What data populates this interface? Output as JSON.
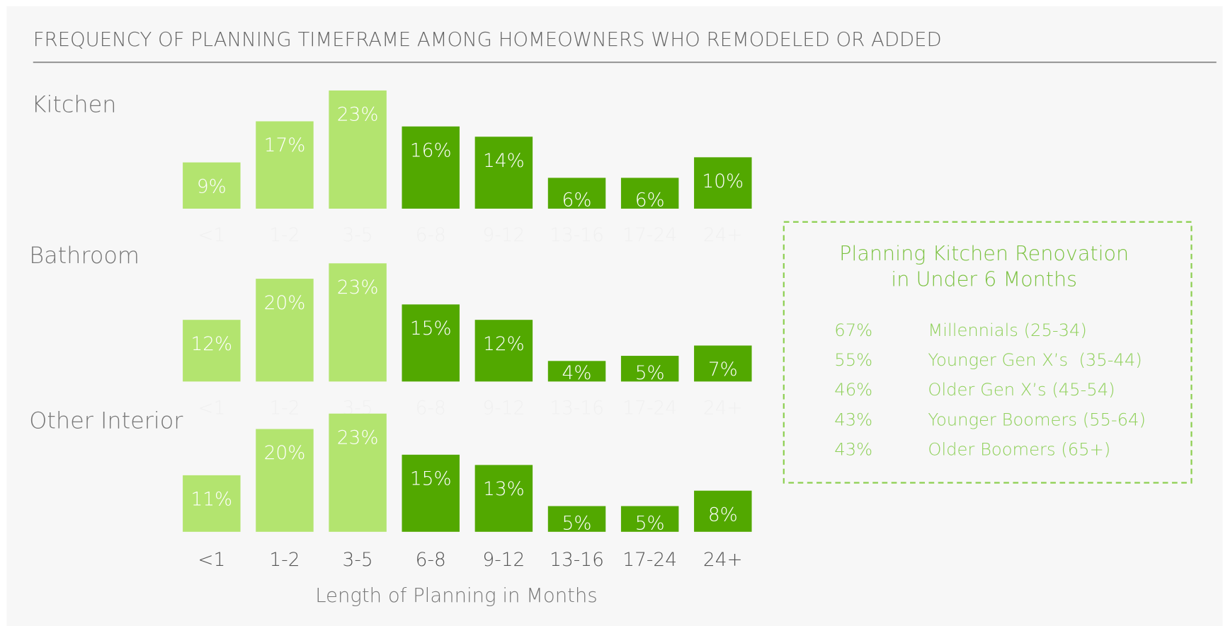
{
  "header": {
    "title": "FREQUENCY OF PLANNING TIMEFRAME AMONG HOMEOWNERS WHO REMODELED OR ADDED"
  },
  "chart_data": [
    {
      "type": "bar",
      "title": "Kitchen",
      "categories": [
        "<1",
        "1-2",
        "3-5",
        "6-8",
        "9-12",
        "13-16",
        "17-24",
        "24+"
      ],
      "values": [
        9,
        17,
        23,
        16,
        14,
        6,
        6,
        10
      ],
      "value_labels": [
        "9%",
        "17%",
        "23%",
        "16%",
        "14%",
        "6%",
        "6%",
        "10%"
      ],
      "colors": [
        "#b3e46f",
        "#b3e46f",
        "#b3e46f",
        "#52a800",
        "#52a800",
        "#52a800",
        "#52a800",
        "#52a800"
      ]
    },
    {
      "type": "bar",
      "title": "Bathroom",
      "categories": [
        "<1",
        "1-2",
        "3-5",
        "6-8",
        "9-12",
        "13-16",
        "17-24",
        "24+"
      ],
      "values": [
        12,
        20,
        23,
        15,
        12,
        4,
        5,
        7
      ],
      "value_labels": [
        "12%",
        "20%",
        "23%",
        "15%",
        "12%",
        "4%",
        "5%",
        "7%"
      ],
      "colors": [
        "#b3e46f",
        "#b3e46f",
        "#b3e46f",
        "#52a800",
        "#52a800",
        "#52a800",
        "#52a800",
        "#52a800"
      ]
    },
    {
      "type": "bar",
      "title": "Other Interior",
      "categories": [
        "<1",
        "1-2",
        "3-5",
        "6-8",
        "9-12",
        "13-16",
        "17-24",
        "24+"
      ],
      "values": [
        11,
        20,
        23,
        15,
        13,
        5,
        5,
        8
      ],
      "value_labels": [
        "11%",
        "20%",
        "23%",
        "15%",
        "13%",
        "5%",
        "5%",
        "8%"
      ],
      "colors": [
        "#b3e46f",
        "#b3e46f",
        "#b3e46f",
        "#52a800",
        "#52a800",
        "#52a800",
        "#52a800",
        "#52a800"
      ],
      "x_label": "Length of Planning in Months"
    }
  ],
  "callout": {
    "title_lines": [
      "Planning Kitchen Renovation",
      "in Under 6 Months"
    ],
    "rows": [
      {
        "value": "67%",
        "label": "Millennials (25-34)"
      },
      {
        "value": "55%",
        "label": "Younger Gen X’s  (35-44)"
      },
      {
        "value": "46%",
        "label": "Older Gen X’s (45-54)"
      },
      {
        "value": "43%",
        "label": "Younger Boomers (55-64)"
      },
      {
        "value": "43%",
        "label": "Older Boomers (65+)"
      }
    ]
  }
}
